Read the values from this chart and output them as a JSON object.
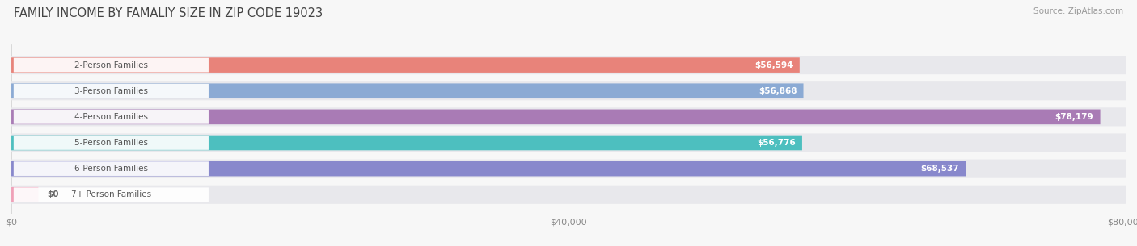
{
  "title": "FAMILY INCOME BY FAMALIY SIZE IN ZIP CODE 19023",
  "source": "Source: ZipAtlas.com",
  "categories": [
    "2-Person Families",
    "3-Person Families",
    "4-Person Families",
    "5-Person Families",
    "6-Person Families",
    "7+ Person Families"
  ],
  "values": [
    56594,
    56868,
    78179,
    56776,
    68537,
    0
  ],
  "labels": [
    "$56,594",
    "$56,868",
    "$78,179",
    "$56,776",
    "$68,537",
    "$0"
  ],
  "bar_colors": [
    "#E8837A",
    "#8BAAD4",
    "#A97BB5",
    "#4DBFBF",
    "#8888CC",
    "#F0A0B8"
  ],
  "track_color": "#E8E8EC",
  "xlim": [
    0,
    80000
  ],
  "xticklabels": [
    "$0",
    "$40,000",
    "$80,000"
  ],
  "figsize": [
    14.06,
    3.05
  ],
  "dpi": 100,
  "title_fontsize": 10.5,
  "tick_fontsize": 8,
  "value_fontsize": 7.5,
  "cat_fontsize": 7.5,
  "source_fontsize": 7.5,
  "bg_color": "#F7F7F7"
}
